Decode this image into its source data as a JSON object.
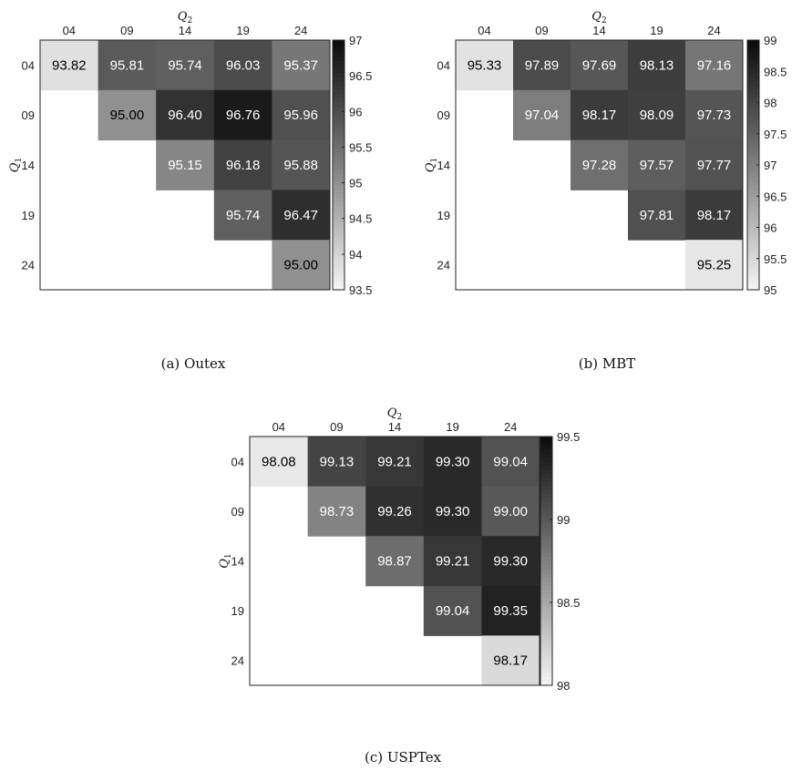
{
  "chart_data": [
    {
      "type": "heatmap",
      "caption": "(a) Outex",
      "xlabel": "Q2",
      "ylabel": "Q1",
      "x_categories": [
        "04",
        "09",
        "14",
        "19",
        "24"
      ],
      "y_categories": [
        "04",
        "09",
        "14",
        "19",
        "24"
      ],
      "values": [
        [
          93.82,
          95.81,
          95.74,
          96.03,
          95.37
        ],
        [
          null,
          95.0,
          96.4,
          96.76,
          95.96
        ],
        [
          null,
          null,
          95.15,
          96.18,
          95.88
        ],
        [
          null,
          null,
          null,
          95.74,
          96.47
        ],
        [
          null,
          null,
          null,
          null,
          95.0
        ]
      ],
      "value_labels": [
        [
          "93.82",
          "95.81",
          "95.74",
          "96.03",
          "95.37"
        ],
        [
          null,
          "95.00",
          "96.40",
          "96.76",
          "95.96"
        ],
        [
          null,
          null,
          "95.15",
          "96.18",
          "95.88"
        ],
        [
          null,
          null,
          null,
          "95.74",
          "96.47"
        ],
        [
          null,
          null,
          null,
          null,
          "95.00"
        ]
      ],
      "colorbar": {
        "range": [
          93.5,
          97
        ],
        "ticks": [
          93.5,
          94,
          94.5,
          95,
          95.5,
          96,
          96.5,
          97
        ],
        "tick_labels": [
          "93.5",
          "94",
          "94.5",
          "95",
          "95.5",
          "96",
          "96.5",
          "97"
        ]
      },
      "colormap": "gray (white = low, black = high)"
    },
    {
      "type": "heatmap",
      "caption": "(b) MBT",
      "xlabel": "Q2",
      "ylabel": "Q1",
      "x_categories": [
        "04",
        "09",
        "14",
        "19",
        "24"
      ],
      "y_categories": [
        "04",
        "09",
        "14",
        "19",
        "24"
      ],
      "values": [
        [
          95.33,
          97.89,
          97.69,
          98.13,
          97.16
        ],
        [
          null,
          97.04,
          98.17,
          98.09,
          97.73
        ],
        [
          null,
          null,
          97.28,
          97.57,
          97.77
        ],
        [
          null,
          null,
          null,
          97.81,
          98.17
        ],
        [
          null,
          null,
          null,
          null,
          95.25
        ]
      ],
      "value_labels": [
        [
          "95.33",
          "97.89",
          "97.69",
          "98.13",
          "97.16"
        ],
        [
          null,
          "97.04",
          "98.17",
          "98.09",
          "97.73"
        ],
        [
          null,
          null,
          "97.28",
          "97.57",
          "97.77"
        ],
        [
          null,
          null,
          null,
          "97.81",
          "98.17"
        ],
        [
          null,
          null,
          null,
          null,
          "95.25"
        ]
      ],
      "colorbar": {
        "range": [
          95,
          99
        ],
        "ticks": [
          95,
          95.5,
          96,
          96.5,
          97,
          97.5,
          98,
          98.5,
          99
        ],
        "tick_labels": [
          "95",
          "95.5",
          "96",
          "96.5",
          "97",
          "97.5",
          "98",
          "98.5",
          "99"
        ]
      },
      "colormap": "gray (white = low, black = high)"
    },
    {
      "type": "heatmap",
      "caption": "(c) USPTex",
      "xlabel": "Q2",
      "ylabel": "Q1",
      "x_categories": [
        "04",
        "09",
        "14",
        "19",
        "24"
      ],
      "y_categories": [
        "04",
        "09",
        "14",
        "19",
        "24"
      ],
      "values": [
        [
          98.08,
          99.13,
          99.21,
          99.3,
          99.04
        ],
        [
          null,
          98.73,
          99.26,
          99.3,
          99.0
        ],
        [
          null,
          null,
          98.87,
          99.21,
          99.3
        ],
        [
          null,
          null,
          null,
          99.04,
          99.35
        ],
        [
          null,
          null,
          null,
          null,
          98.17
        ]
      ],
      "value_labels": [
        [
          "98.08",
          "99.13",
          "99.21",
          "99.30",
          "99.04"
        ],
        [
          null,
          "98.73",
          "99.26",
          "99.30",
          "99.00"
        ],
        [
          null,
          null,
          "98.87",
          "99.21",
          "99.30"
        ],
        [
          null,
          null,
          null,
          "99.04",
          "99.35"
        ],
        [
          null,
          null,
          null,
          null,
          "98.17"
        ]
      ],
      "colorbar": {
        "range": [
          98,
          99.5
        ],
        "ticks": [
          98,
          98.5,
          99,
          99.5
        ],
        "tick_labels": [
          "98",
          "98.5",
          "99",
          "99.5"
        ]
      },
      "colormap": "gray (white = low, black = high)"
    }
  ]
}
